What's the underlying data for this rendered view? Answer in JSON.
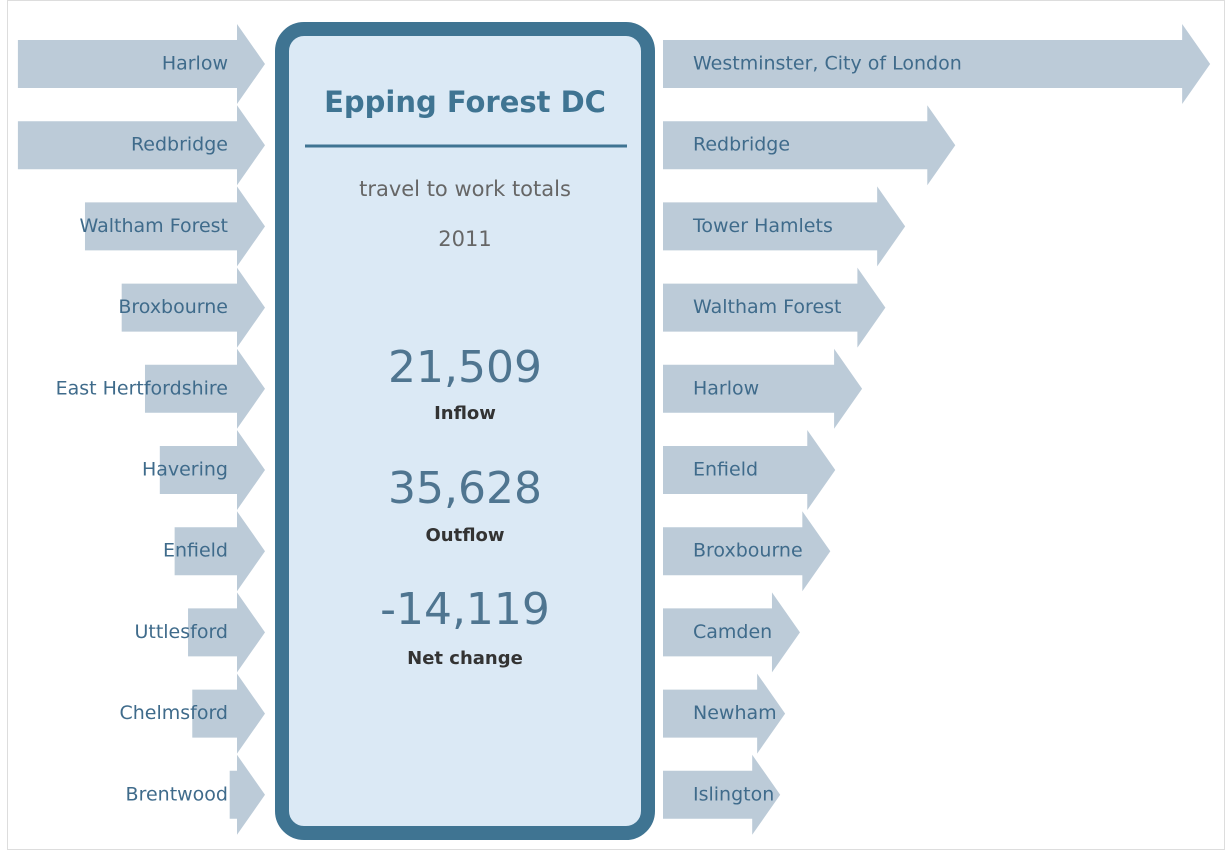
{
  "title": "Epping Forest DC",
  "subtitle": "travel to work totals",
  "year": "2011",
  "totals": [
    {
      "value": "21,509",
      "label": "Inflow"
    },
    {
      "value": "35,628",
      "label": "Outflow"
    },
    {
      "value": "-14,119",
      "label": "Net change"
    }
  ],
  "inflows": {
    "names": [
      "Harlow",
      "Redbridge",
      "Waltham Forest",
      "Broxbourne",
      "East Hertfordshire",
      "Havering",
      "Enfield",
      "Uttlesford",
      "Chelmsford",
      "Brentwood"
    ],
    "values": [
      3500,
      3500,
      2550,
      2030,
      1700,
      1490,
      1280,
      1090,
      1030,
      500
    ]
  },
  "outflows": {
    "names": [
      "Westminster, City of London",
      "Redbridge",
      "Tower Hamlets",
      "Waltham Forest",
      "Harlow",
      "Enfield",
      "Broxbourne",
      "Camden",
      "Newham",
      "Islington"
    ],
    "values": [
      7750,
      4140,
      3430,
      3150,
      2820,
      2440,
      2370,
      1940,
      1730,
      1660
    ]
  }
}
